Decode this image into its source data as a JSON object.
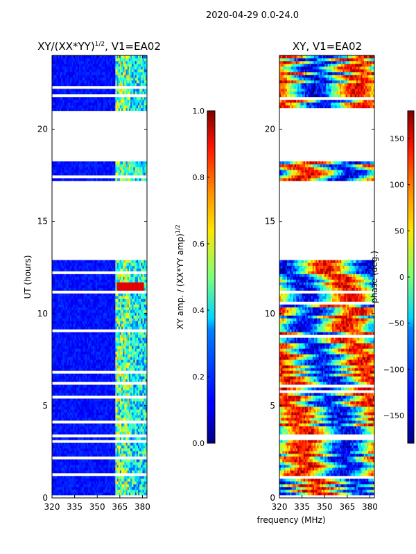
{
  "figure": {
    "suptitle": "2020-04-29 0.0-24.0",
    "xlabel": "frequency (MHz)"
  },
  "chart_data": [
    {
      "type": "heatmap",
      "id": "amp",
      "title": "XY/(XX*YY)",
      "title_exp": "1/2",
      "title_suffix": ", V1=EA02",
      "ylabel": "UT (hours)",
      "xlim": [
        320,
        383
      ],
      "ylim": [
        0,
        24
      ],
      "xticks": [
        320,
        335,
        350,
        365,
        380
      ],
      "yticks": [
        0,
        5,
        10,
        15,
        20
      ],
      "data_blocks_ut": [
        [
          0,
          12.9
        ],
        [
          17.2,
          18.2
        ],
        [
          21.0,
          23.9
        ]
      ],
      "colorbar": {
        "label": "XY amp. / (XX*YY amp)",
        "label_exp": "1/2",
        "range": [
          0.0,
          1.0
        ],
        "ticks": [
          "0.0",
          "0.2",
          "0.4",
          "0.6",
          "0.8",
          "1.0"
        ],
        "colormap": "jet"
      }
    },
    {
      "type": "heatmap",
      "id": "phase",
      "title": "XY, V1=EA02",
      "xlim": [
        320,
        383
      ],
      "ylim": [
        0,
        24
      ],
      "xticks": [
        320,
        335,
        350,
        365,
        380
      ],
      "yticks": [
        0,
        5,
        10,
        15,
        20
      ],
      "data_blocks_ut": [
        [
          0,
          12.9
        ],
        [
          17.2,
          18.2
        ],
        [
          21.0,
          23.9
        ]
      ],
      "colorbar": {
        "label": "phase (deg.)",
        "range": [
          -180,
          180
        ],
        "ticks": [
          "−150",
          "−100",
          "−50",
          "0",
          "50",
          "100",
          "150"
        ],
        "tick_values": [
          -150,
          -100,
          -50,
          0,
          50,
          100,
          150
        ],
        "colormap": "jet"
      }
    }
  ]
}
